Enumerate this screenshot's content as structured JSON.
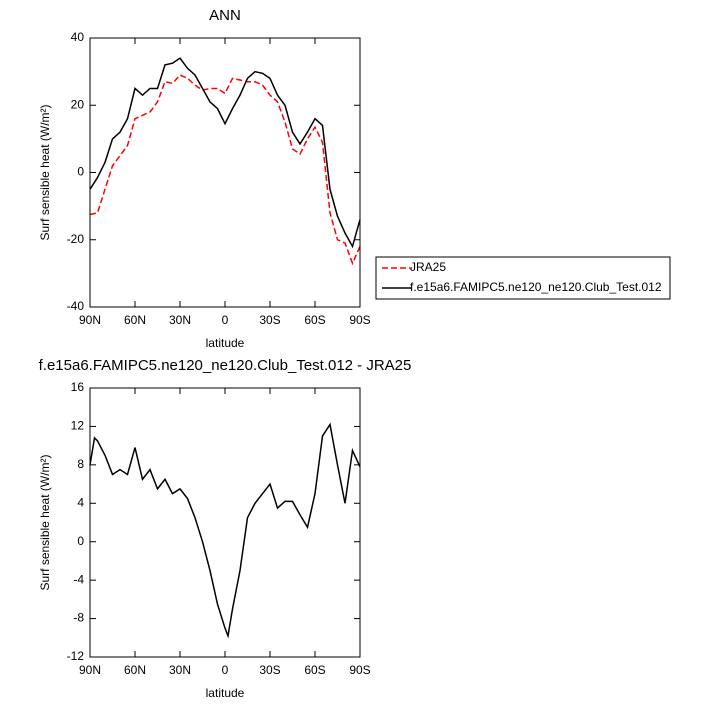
{
  "chart_data": [
    {
      "type": "line",
      "title": "ANN",
      "x_label": "latitude",
      "y_label": "Surf sensible heat (W/m²)",
      "x": [
        90,
        85,
        80,
        75,
        70,
        65,
        60,
        55,
        50,
        45,
        40,
        35,
        30,
        25,
        20,
        15,
        10,
        5,
        0,
        -5,
        -10,
        -15,
        -20,
        -25,
        -30,
        -35,
        -40,
        -45,
        -50,
        -55,
        -60,
        -65,
        -70,
        -75,
        -80,
        -85,
        -90
      ],
      "series": [
        {
          "name": "JRA25",
          "color": "#ff0000",
          "line_style": "dashed",
          "values": [
            -12.5,
            -12,
            -5,
            2,
            5,
            8,
            16,
            17,
            18,
            21,
            27,
            26.5,
            29,
            28,
            26,
            24.5,
            25,
            25,
            23.5,
            28,
            27.5,
            27,
            27,
            26,
            23,
            21,
            15,
            7,
            5.5,
            10,
            13.5,
            9,
            -12,
            -20,
            -21,
            -27,
            -22
          ]
        },
        {
          "name": "f.e15a6.FAMIPC5.ne120_ne120.Club_Test.012",
          "color": "#000000",
          "line_style": "solid",
          "values": [
            -5,
            -1.5,
            3,
            10,
            12,
            16,
            25,
            23,
            25,
            25,
            32,
            32.5,
            34,
            31,
            29,
            25,
            21,
            19,
            14.5,
            19,
            23,
            28,
            30,
            29.5,
            28,
            23,
            20,
            12,
            8.5,
            12,
            16,
            14,
            -5,
            -13,
            -18,
            -22,
            -14
          ]
        }
      ],
      "xlim": [
        90,
        -90
      ],
      "xticks": [
        {
          "value": 90,
          "label": "90N"
        },
        {
          "value": 60,
          "label": "60N"
        },
        {
          "value": 30,
          "label": "30N"
        },
        0,
        {
          "value": -30,
          "label": "30S"
        },
        {
          "value": -60,
          "label": "60S"
        },
        {
          "value": -90,
          "label": "90S"
        }
      ],
      "ylim": [
        -40,
        40
      ],
      "yticks": [
        -40,
        -20,
        0,
        20,
        40
      ],
      "grid": false,
      "legend": "right"
    },
    {
      "type": "line",
      "title": "f.e15a6.FAMIPC5.ne120_ne120.Club_Test.012 - JRA25",
      "x_label": "latitude",
      "y_label": "Surf sensible heat (W/m²)",
      "x": [
        90,
        87,
        85,
        80,
        75,
        70,
        65,
        60,
        55,
        50,
        45,
        40,
        35,
        30,
        25,
        20,
        15,
        10,
        5,
        0,
        -2,
        -5,
        -10,
        -15,
        -20,
        -25,
        -30,
        -35,
        -40,
        -45,
        -50,
        -55,
        -60,
        -65,
        -70,
        -75,
        -80,
        -85,
        -90
      ],
      "values": [
        8,
        10.8,
        10.5,
        9,
        7,
        7.5,
        7,
        9.8,
        6.5,
        7.5,
        5.5,
        6.5,
        5,
        5.5,
        4.5,
        2.5,
        0,
        -3,
        -6.5,
        -9,
        -9.8,
        -7,
        -3,
        2.5,
        4,
        5,
        6,
        3.5,
        4.2,
        4.2,
        2.8,
        1.5,
        5,
        11,
        12.2,
        8,
        4,
        9.5,
        7.8
      ],
      "color": "#000000",
      "xlim": [
        90,
        -90
      ],
      "xticks": [
        {
          "value": 90,
          "label": "90N"
        },
        {
          "value": 60,
          "label": "60N"
        },
        {
          "value": 30,
          "label": "30N"
        },
        0,
        {
          "value": -30,
          "label": "30S"
        },
        {
          "value": -60,
          "label": "60S"
        },
        {
          "value": -90,
          "label": "90S"
        }
      ],
      "ylim": [
        -12,
        16
      ],
      "yticks": [
        -12,
        -8,
        -4,
        0,
        4,
        8,
        12,
        16
      ],
      "grid": false
    }
  ]
}
